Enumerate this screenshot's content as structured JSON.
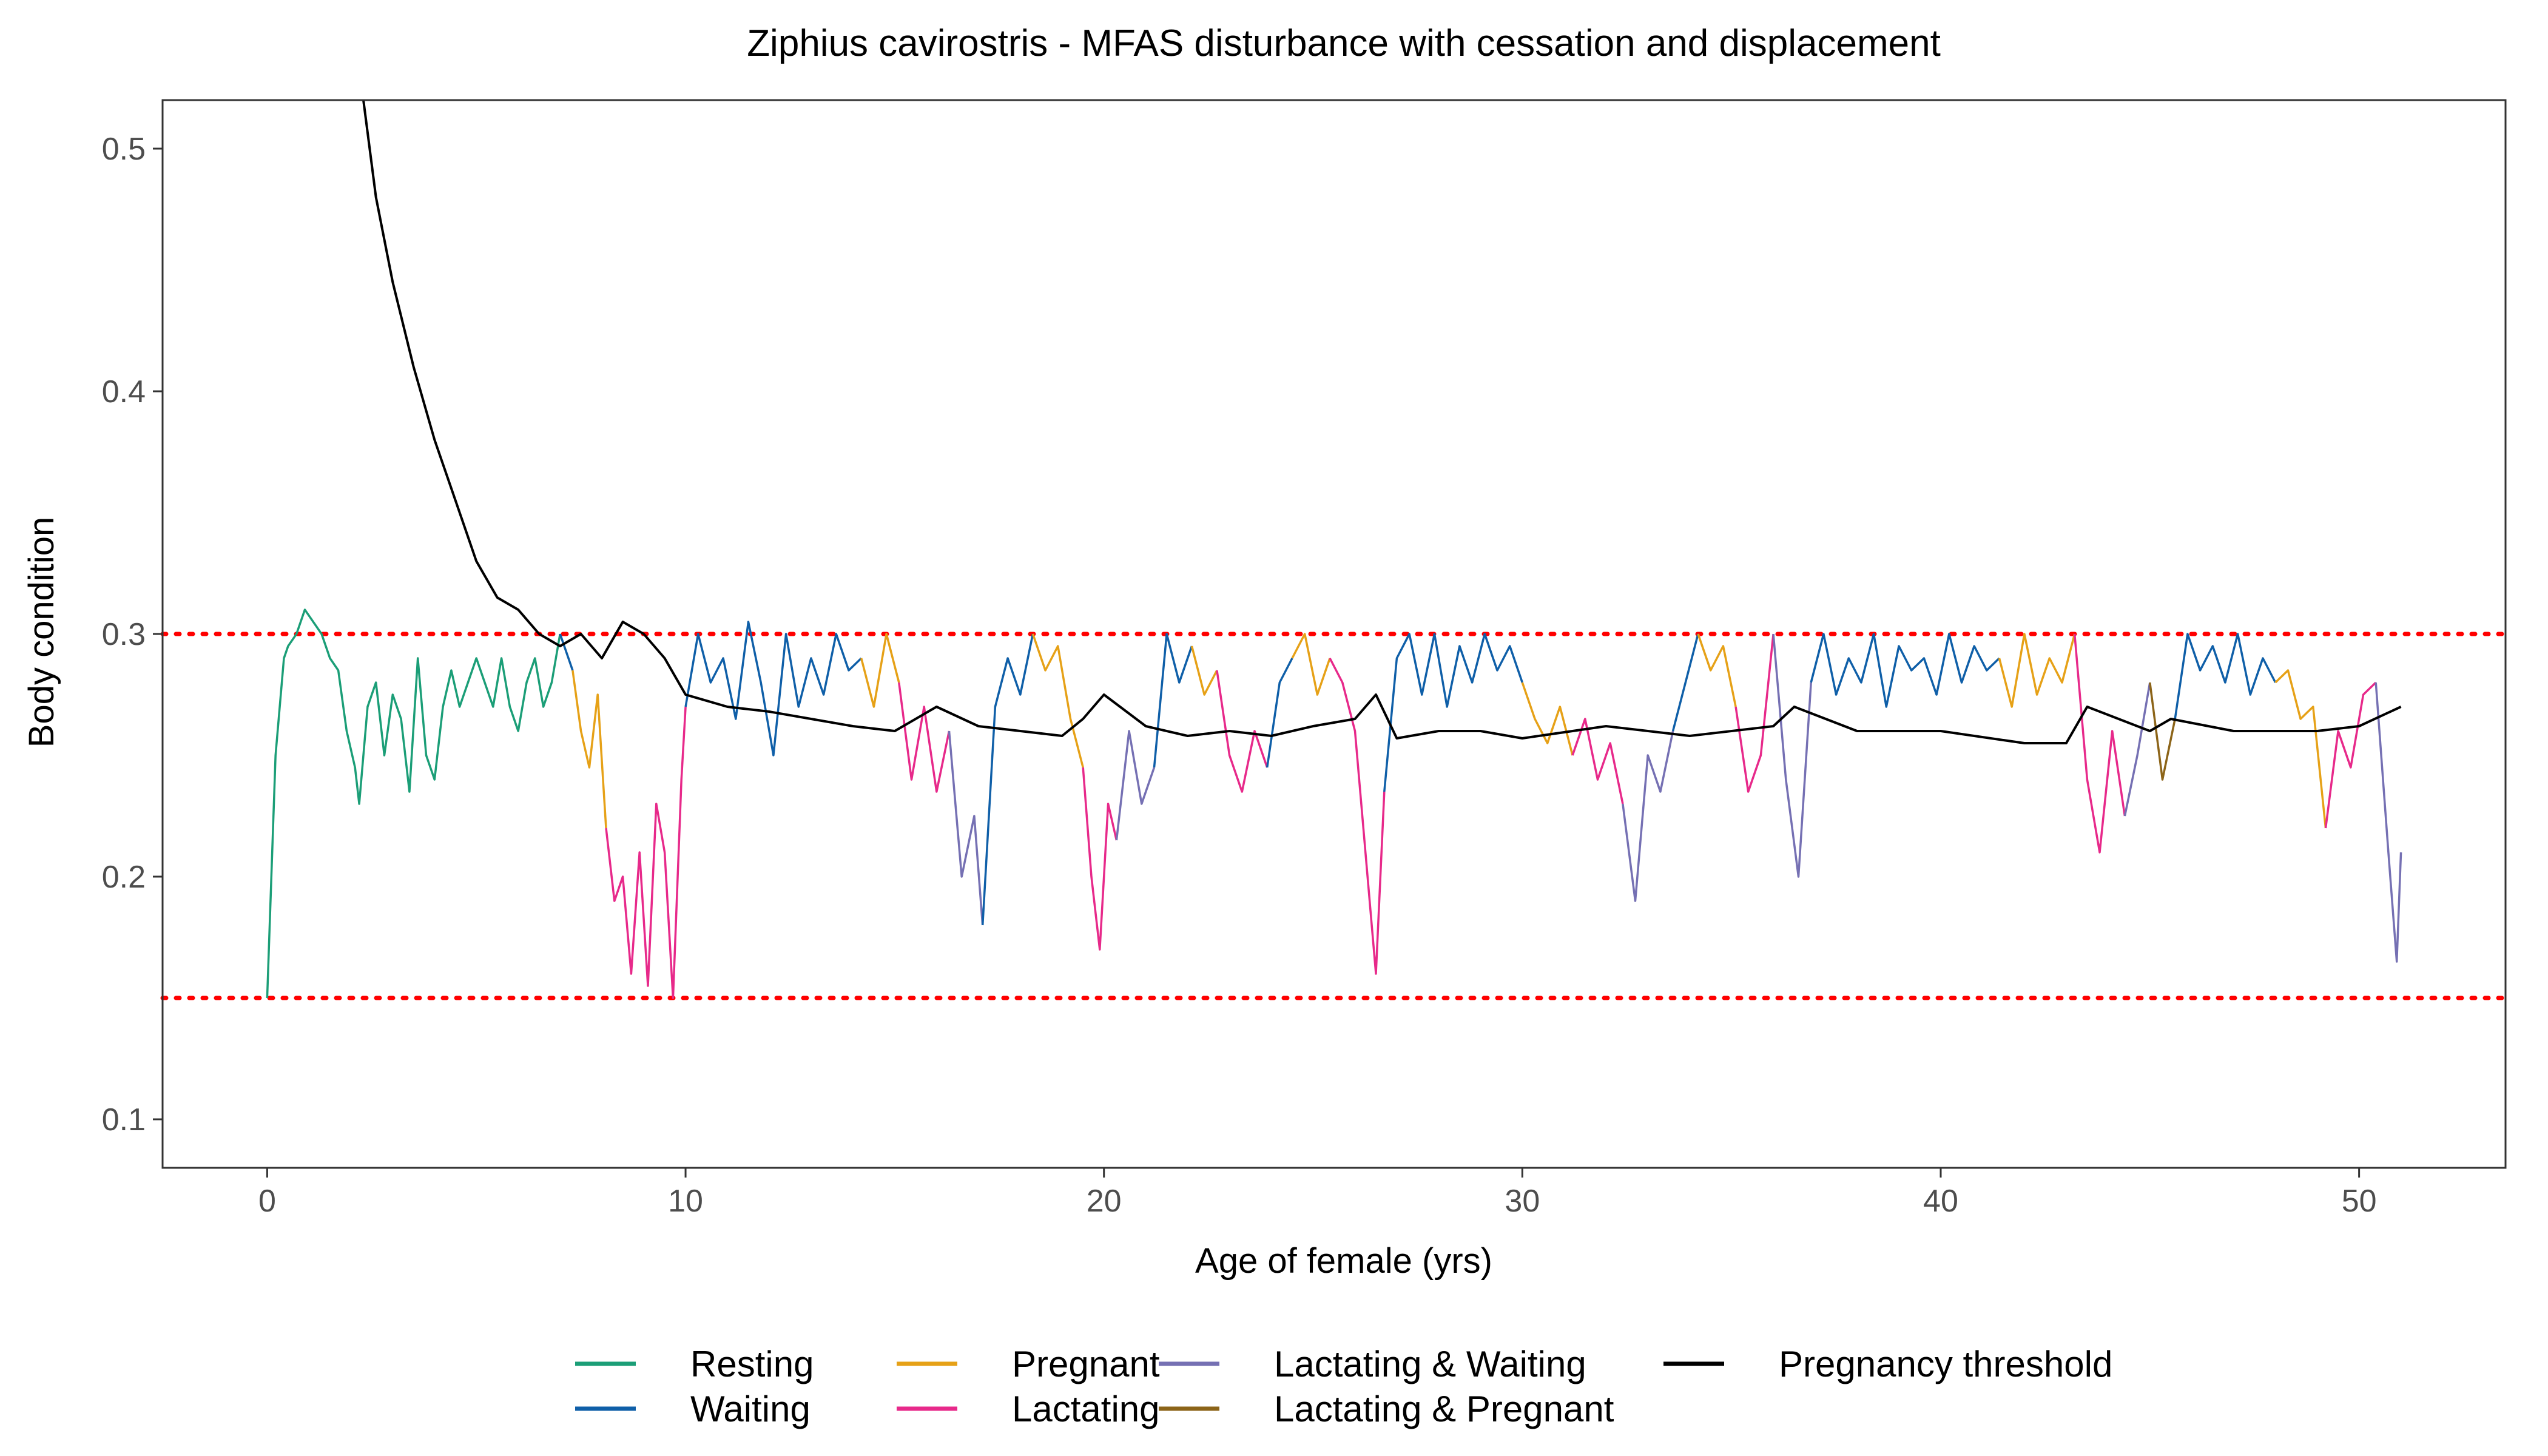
{
  "chart_data": {
    "type": "line",
    "title": "Ziphius cavirostris - MFAS disturbance with cessation and displacement",
    "xlabel": "Age of female (yrs)",
    "ylabel": "Body condition",
    "xlim": [
      -2.5,
      53.5
    ],
    "ylim": [
      0.08,
      0.52
    ],
    "x_ticks": [
      0,
      10,
      20,
      30,
      40,
      50
    ],
    "x_tick_labels": [
      "0",
      "10",
      "20",
      "30",
      "40",
      "50"
    ],
    "y_ticks": [
      0.1,
      0.2,
      0.3,
      0.4,
      0.5
    ],
    "y_tick_labels": [
      "0.1",
      "0.2",
      "0.3",
      "0.4",
      "0.5"
    ],
    "grid": false,
    "legend_position": "bottom",
    "reference_lines": [
      {
        "y": 0.3,
        "color": "#ff0000",
        "style": "dotted"
      },
      {
        "y": 0.15,
        "color": "#ff0000",
        "style": "dotted"
      }
    ],
    "states": [
      {
        "name": "Resting",
        "color": "#1b9e77"
      },
      {
        "name": "Waiting",
        "color": "#0f5fa8"
      },
      {
        "name": "Pregnant",
        "color": "#e6a117"
      },
      {
        "name": "Lactating",
        "color": "#e7298a"
      },
      {
        "name": "Lactating & Waiting",
        "color": "#7570b3"
      },
      {
        "name": "Lactating & Pregnant",
        "color": "#8c6418"
      },
      {
        "name": "Pregnancy threshold",
        "color": "#000000"
      }
    ],
    "body_condition_segments": [
      {
        "state": "Resting",
        "x": [
          0,
          0.1,
          0.2,
          0.3,
          0.4,
          0.5,
          0.7,
          0.9,
          1.1,
          1.3,
          1.5,
          1.7,
          1.9,
          2.1,
          2.2,
          2.4,
          2.6,
          2.8,
          3.0,
          3.2,
          3.4,
          3.6,
          3.8,
          4.0,
          4.2,
          4.4,
          4.6,
          4.8,
          5.0,
          5.2,
          5.4,
          5.6,
          5.8,
          6.0,
          6.2,
          6.4,
          6.6,
          6.8,
          7.0
        ],
        "y": [
          0.15,
          0.2,
          0.25,
          0.27,
          0.29,
          0.295,
          0.3,
          0.31,
          0.305,
          0.3,
          0.29,
          0.285,
          0.26,
          0.245,
          0.23,
          0.27,
          0.28,
          0.25,
          0.275,
          0.265,
          0.235,
          0.29,
          0.25,
          0.24,
          0.27,
          0.285,
          0.27,
          0.28,
          0.29,
          0.28,
          0.27,
          0.29,
          0.27,
          0.26,
          0.28,
          0.29,
          0.27,
          0.28,
          0.3
        ]
      },
      {
        "state": "Waiting",
        "x": [
          7.0,
          7.3
        ],
        "y": [
          0.3,
          0.285
        ]
      },
      {
        "state": "Pregnant",
        "x": [
          7.3,
          7.5,
          7.7,
          7.9,
          8.1
        ],
        "y": [
          0.285,
          0.26,
          0.245,
          0.275,
          0.22
        ]
      },
      {
        "state": "Lactating",
        "x": [
          8.1,
          8.3,
          8.5,
          8.7,
          8.9,
          9.1,
          9.3,
          9.5,
          9.7,
          9.9,
          10.0
        ],
        "y": [
          0.22,
          0.19,
          0.2,
          0.16,
          0.21,
          0.155,
          0.23,
          0.21,
          0.15,
          0.24,
          0.27
        ]
      },
      {
        "state": "Waiting",
        "x": [
          10.0,
          10.3,
          10.6,
          10.9,
          11.2,
          11.5,
          11.8,
          12.1,
          12.4,
          12.7,
          13.0,
          13.3,
          13.6,
          13.9,
          14.2
        ],
        "y": [
          0.27,
          0.3,
          0.28,
          0.29,
          0.265,
          0.305,
          0.28,
          0.25,
          0.3,
          0.27,
          0.29,
          0.275,
          0.3,
          0.285,
          0.29
        ]
      },
      {
        "state": "Pregnant",
        "x": [
          14.2,
          14.5,
          14.8,
          15.1
        ],
        "y": [
          0.29,
          0.27,
          0.3,
          0.28
        ]
      },
      {
        "state": "Lactating",
        "x": [
          15.1,
          15.4,
          15.7,
          16.0,
          16.3
        ],
        "y": [
          0.28,
          0.24,
          0.27,
          0.235,
          0.26
        ]
      },
      {
        "state": "Lactating & Waiting",
        "x": [
          16.3,
          16.6,
          16.9,
          17.1
        ],
        "y": [
          0.26,
          0.2,
          0.225,
          0.18
        ]
      },
      {
        "state": "Waiting",
        "x": [
          17.1,
          17.4,
          17.7,
          18.0,
          18.3
        ],
        "y": [
          0.18,
          0.27,
          0.29,
          0.275,
          0.3
        ]
      },
      {
        "state": "Pregnant",
        "x": [
          18.3,
          18.6,
          18.9,
          19.2,
          19.5
        ],
        "y": [
          0.3,
          0.285,
          0.295,
          0.265,
          0.245
        ]
      },
      {
        "state": "Lactating",
        "x": [
          19.5,
          19.7,
          19.9,
          20.1,
          20.3
        ],
        "y": [
          0.245,
          0.2,
          0.17,
          0.23,
          0.215
        ]
      },
      {
        "state": "Lactating & Waiting",
        "x": [
          20.3,
          20.6,
          20.9,
          21.2
        ],
        "y": [
          0.215,
          0.26,
          0.23,
          0.245
        ]
      },
      {
        "state": "Waiting",
        "x": [
          21.2,
          21.5,
          21.8,
          22.1
        ],
        "y": [
          0.245,
          0.3,
          0.28,
          0.295
        ]
      },
      {
        "state": "Pregnant",
        "x": [
          22.1,
          22.4,
          22.7
        ],
        "y": [
          0.295,
          0.275,
          0.285
        ]
      },
      {
        "state": "Lactating",
        "x": [
          22.7,
          23.0,
          23.3,
          23.6,
          23.9
        ],
        "y": [
          0.285,
          0.25,
          0.235,
          0.26,
          0.245
        ]
      },
      {
        "state": "Waiting",
        "x": [
          23.9,
          24.2,
          24.5
        ],
        "y": [
          0.245,
          0.28,
          0.29
        ]
      },
      {
        "state": "Pregnant",
        "x": [
          24.5,
          24.8,
          25.1,
          25.4
        ],
        "y": [
          0.29,
          0.3,
          0.275,
          0.29
        ]
      },
      {
        "state": "Lactating",
        "x": [
          25.4,
          25.7,
          26.0,
          26.3,
          26.5,
          26.7
        ],
        "y": [
          0.29,
          0.28,
          0.26,
          0.2,
          0.16,
          0.235
        ]
      },
      {
        "state": "Waiting",
        "x": [
          26.7,
          27.0,
          27.3,
          27.6,
          27.9,
          28.2,
          28.5,
          28.8,
          29.1,
          29.4,
          29.7,
          30.0
        ],
        "y": [
          0.235,
          0.29,
          0.3,
          0.275,
          0.3,
          0.27,
          0.295,
          0.28,
          0.3,
          0.285,
          0.295,
          0.28
        ]
      },
      {
        "state": "Pregnant",
        "x": [
          30.0,
          30.3,
          30.6,
          30.9,
          31.2
        ],
        "y": [
          0.28,
          0.265,
          0.255,
          0.27,
          0.25
        ]
      },
      {
        "state": "Lactating",
        "x": [
          31.2,
          31.5,
          31.8,
          32.1,
          32.4
        ],
        "y": [
          0.25,
          0.265,
          0.24,
          0.255,
          0.23
        ]
      },
      {
        "state": "Lactating & Waiting",
        "x": [
          32.4,
          32.7,
          33.0,
          33.3,
          33.6
        ],
        "y": [
          0.23,
          0.19,
          0.25,
          0.235,
          0.26
        ]
      },
      {
        "state": "Waiting",
        "x": [
          33.6,
          33.9,
          34.2
        ],
        "y": [
          0.26,
          0.28,
          0.3
        ]
      },
      {
        "state": "Pregnant",
        "x": [
          34.2,
          34.5,
          34.8,
          35.1
        ],
        "y": [
          0.3,
          0.285,
          0.295,
          0.27
        ]
      },
      {
        "state": "Lactating",
        "x": [
          35.1,
          35.4,
          35.7,
          36.0
        ],
        "y": [
          0.27,
          0.235,
          0.25,
          0.3
        ]
      },
      {
        "state": "Lactating & Waiting",
        "x": [
          36.0,
          36.3,
          36.6,
          36.9
        ],
        "y": [
          0.3,
          0.24,
          0.2,
          0.28
        ]
      },
      {
        "state": "Waiting",
        "x": [
          36.9,
          37.2,
          37.5,
          37.8,
          38.1,
          38.4,
          38.7,
          39.0,
          39.3,
          39.6,
          39.9,
          40.2,
          40.5,
          40.8,
          41.1,
          41.4
        ],
        "y": [
          0.28,
          0.3,
          0.275,
          0.29,
          0.28,
          0.3,
          0.27,
          0.295,
          0.285,
          0.29,
          0.275,
          0.3,
          0.28,
          0.295,
          0.285,
          0.29
        ]
      },
      {
        "state": "Pregnant",
        "x": [
          41.4,
          41.7,
          42.0,
          42.3,
          42.6,
          42.9,
          43.2
        ],
        "y": [
          0.29,
          0.27,
          0.3,
          0.275,
          0.29,
          0.28,
          0.3
        ]
      },
      {
        "state": "Lactating",
        "x": [
          43.2,
          43.5,
          43.8,
          44.1,
          44.4
        ],
        "y": [
          0.3,
          0.24,
          0.21,
          0.26,
          0.225
        ]
      },
      {
        "state": "Lactating & Waiting",
        "x": [
          44.4,
          44.7,
          45.0
        ],
        "y": [
          0.225,
          0.25,
          0.28
        ]
      },
      {
        "state": "Lactating & Pregnant",
        "x": [
          45.0,
          45.3,
          45.6
        ],
        "y": [
          0.28,
          0.24,
          0.265
        ]
      },
      {
        "state": "Waiting",
        "x": [
          45.6,
          45.9,
          46.2,
          46.5,
          46.8,
          47.1,
          47.4,
          47.7,
          48.0
        ],
        "y": [
          0.265,
          0.3,
          0.285,
          0.295,
          0.28,
          0.3,
          0.275,
          0.29,
          0.28
        ]
      },
      {
        "state": "Pregnant",
        "x": [
          48.0,
          48.3,
          48.6,
          48.9,
          49.2
        ],
        "y": [
          0.28,
          0.285,
          0.265,
          0.27,
          0.22
        ]
      },
      {
        "state": "Lactating",
        "x": [
          49.2,
          49.5,
          49.8,
          50.1,
          50.4
        ],
        "y": [
          0.22,
          0.26,
          0.245,
          0.275,
          0.28
        ]
      },
      {
        "state": "Lactating & Waiting",
        "x": [
          50.4,
          50.7,
          50.9,
          51.0
        ],
        "y": [
          0.28,
          0.21,
          0.165,
          0.21
        ]
      }
    ],
    "pregnancy_threshold": {
      "name": "Pregnancy threshold",
      "x": [
        2.3,
        2.6,
        3.0,
        3.5,
        4.0,
        4.5,
        5.0,
        5.5,
        6.0,
        6.5,
        7.0,
        7.5,
        8.0,
        8.5,
        9.0,
        9.5,
        10.0,
        11.0,
        12.0,
        13.0,
        14.0,
        15.0,
        16.0,
        17.0,
        18.0,
        19.0,
        19.5,
        20.0,
        21.0,
        22.0,
        23.0,
        24.0,
        25.0,
        26.0,
        26.5,
        27.0,
        28.0,
        29.0,
        30.0,
        32.0,
        34.0,
        36.0,
        36.5,
        38.0,
        40.0,
        42.0,
        43.0,
        43.5,
        45.0,
        45.5,
        47.0,
        49.0,
        50.0,
        51.0
      ],
      "y": [
        0.52,
        0.48,
        0.445,
        0.41,
        0.38,
        0.355,
        0.33,
        0.315,
        0.31,
        0.3,
        0.295,
        0.3,
        0.29,
        0.305,
        0.3,
        0.29,
        0.275,
        0.27,
        0.268,
        0.265,
        0.262,
        0.26,
        0.27,
        0.262,
        0.26,
        0.258,
        0.265,
        0.275,
        0.262,
        0.258,
        0.26,
        0.258,
        0.262,
        0.265,
        0.275,
        0.257,
        0.26,
        0.26,
        0.257,
        0.262,
        0.258,
        0.262,
        0.27,
        0.26,
        0.26,
        0.255,
        0.255,
        0.27,
        0.26,
        0.265,
        0.26,
        0.26,
        0.262,
        0.27
      ]
    }
  }
}
